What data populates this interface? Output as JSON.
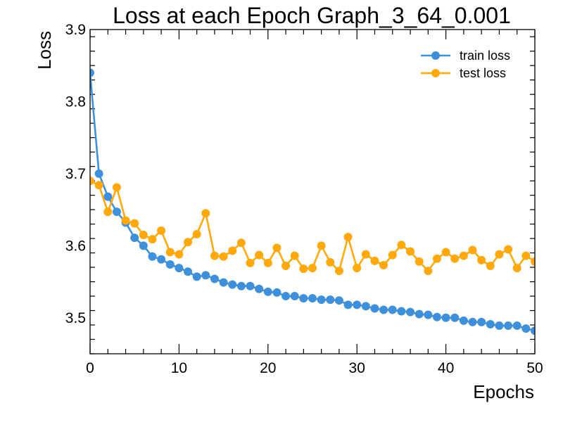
{
  "chart_data": {
    "type": "line",
    "title": "Loss at each Epoch Graph_3_64_0.001",
    "xlabel": "Epochs",
    "ylabel": "Loss",
    "xlim": [
      0,
      50
    ],
    "ylim": [
      3.45,
      3.9
    ],
    "xticks": [
      "0",
      "10",
      "20",
      "30",
      "40",
      "50"
    ],
    "yticks": [
      "3.5",
      "3.6",
      "3.7",
      "3.8",
      "3.9"
    ],
    "grid": false,
    "legend_position": "top-right",
    "x": [
      0,
      1,
      2,
      3,
      4,
      5,
      6,
      7,
      8,
      9,
      10,
      11,
      12,
      13,
      14,
      15,
      16,
      17,
      18,
      19,
      20,
      21,
      22,
      23,
      24,
      25,
      26,
      27,
      28,
      29,
      30,
      31,
      32,
      33,
      34,
      35,
      36,
      37,
      38,
      39,
      40,
      41,
      42,
      43,
      44,
      45,
      46,
      47,
      48,
      49,
      50
    ],
    "series": [
      {
        "name": "train loss",
        "color": "#3f90da",
        "values": [
          3.84,
          3.7,
          3.668,
          3.647,
          3.632,
          3.611,
          3.6,
          3.585,
          3.581,
          3.574,
          3.569,
          3.564,
          3.557,
          3.559,
          3.554,
          3.549,
          3.546,
          3.544,
          3.544,
          3.54,
          3.536,
          3.535,
          3.53,
          3.53,
          3.527,
          3.527,
          3.525,
          3.525,
          3.524,
          3.518,
          3.518,
          3.516,
          3.513,
          3.511,
          3.511,
          3.509,
          3.508,
          3.505,
          3.504,
          3.501,
          3.5,
          3.5,
          3.496,
          3.494,
          3.494,
          3.491,
          3.489,
          3.489,
          3.489,
          3.485,
          3.482
        ]
      },
      {
        "name": "test loss",
        "color": "#ffa90e",
        "values": [
          3.69,
          3.684,
          3.647,
          3.681,
          3.635,
          3.631,
          3.615,
          3.609,
          3.621,
          3.591,
          3.588,
          3.605,
          3.616,
          3.645,
          3.586,
          3.585,
          3.593,
          3.604,
          3.576,
          3.587,
          3.576,
          3.597,
          3.572,
          3.586,
          3.568,
          3.569,
          3.6,
          3.577,
          3.565,
          3.612,
          3.569,
          3.588,
          3.579,
          3.573,
          3.587,
          3.601,
          3.592,
          3.578,
          3.565,
          3.582,
          3.591,
          3.582,
          3.586,
          3.594,
          3.58,
          3.572,
          3.588,
          3.595,
          3.569,
          3.586,
          3.578
        ]
      }
    ]
  }
}
